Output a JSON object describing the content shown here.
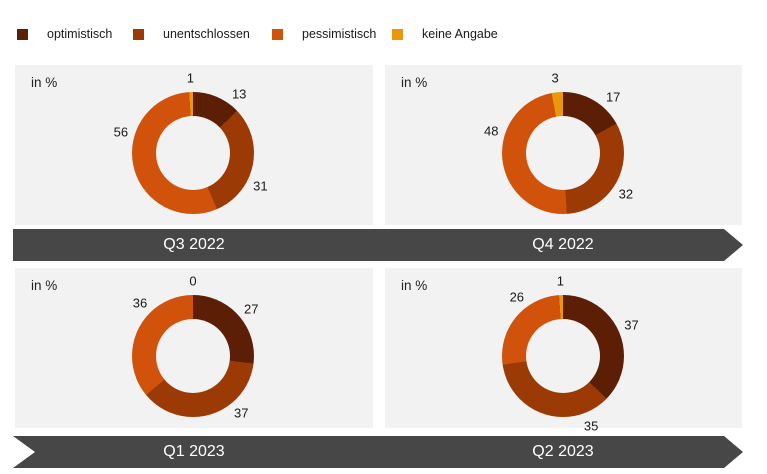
{
  "colors": {
    "optimistisch": "#5c1f05",
    "unentschlossen": "#9c3a06",
    "pessimistisch": "#d1520a",
    "keine_angabe": "#e9980e",
    "panel_bg": "#f2f2f2",
    "arrow_bg": "#474747"
  },
  "legend": {
    "items": [
      {
        "label": "optimistisch",
        "color": "#5c1f05"
      },
      {
        "label": "unentschlossen",
        "color": "#9c3a06"
      },
      {
        "label": "pessimistisch",
        "color": "#d1520a"
      },
      {
        "label": "keine Angabe",
        "color": "#e9980e"
      }
    ]
  },
  "chart_data": [
    {
      "type": "pie",
      "subtype": "donut",
      "quarter": "Q3 2022",
      "unit_label": "in %",
      "slices": [
        {
          "name": "optimistisch",
          "value": 13,
          "color": "#5c1f05",
          "label_angle_deg": 38
        },
        {
          "name": "unentschlossen",
          "value": 31,
          "color": "#9c3a06",
          "label_angle_deg": 116
        },
        {
          "name": "pessimistisch",
          "value": 56,
          "color": "#d1520a",
          "label_angle_deg": 286
        },
        {
          "name": "keine Angabe",
          "value": 1,
          "color": "#e9980e",
          "label_angle_deg": 358
        }
      ]
    },
    {
      "type": "pie",
      "subtype": "donut",
      "quarter": "Q4 2022",
      "unit_label": "in %",
      "slices": [
        {
          "name": "optimistisch",
          "value": 17,
          "color": "#5c1f05",
          "label_angle_deg": 42
        },
        {
          "name": "unentschlossen",
          "value": 32,
          "color": "#9c3a06",
          "label_angle_deg": 123
        },
        {
          "name": "pessimistisch",
          "value": 48,
          "color": "#d1520a",
          "label_angle_deg": 287
        },
        {
          "name": "keine Angabe",
          "value": 3,
          "color": "#e9980e",
          "label_angle_deg": 354
        }
      ]
    },
    {
      "type": "pie",
      "subtype": "donut",
      "quarter": "Q1 2023",
      "unit_label": "in %",
      "slices": [
        {
          "name": "optimistisch",
          "value": 27,
          "color": "#5c1f05",
          "label_angle_deg": 51
        },
        {
          "name": "unentschlossen",
          "value": 37,
          "color": "#9c3a06",
          "label_angle_deg": 140
        },
        {
          "name": "pessimistisch",
          "value": 36,
          "color": "#d1520a",
          "label_angle_deg": 315
        },
        {
          "name": "keine Angabe",
          "value": 0,
          "color": "#e9980e",
          "label_angle_deg": 360
        }
      ]
    },
    {
      "type": "pie",
      "subtype": "donut",
      "quarter": "Q2 2023",
      "unit_label": "in %",
      "slices": [
        {
          "name": "optimistisch",
          "value": 37,
          "color": "#5c1f05",
          "label_angle_deg": 66
        },
        {
          "name": "unentschlossen",
          "value": 35,
          "color": "#9c3a06",
          "label_angle_deg": 158
        },
        {
          "name": "pessimistisch",
          "value": 26,
          "color": "#d1520a",
          "label_angle_deg": 322
        },
        {
          "name": "keine Angabe",
          "value": 1,
          "color": "#e9980e",
          "label_angle_deg": 358
        }
      ]
    }
  ],
  "timeline": {
    "rows": [
      {
        "labels": [
          "Q3 2022",
          "Q4 2022"
        ]
      },
      {
        "labels": [
          "Q1 2023",
          "Q2 2023"
        ]
      }
    ]
  }
}
